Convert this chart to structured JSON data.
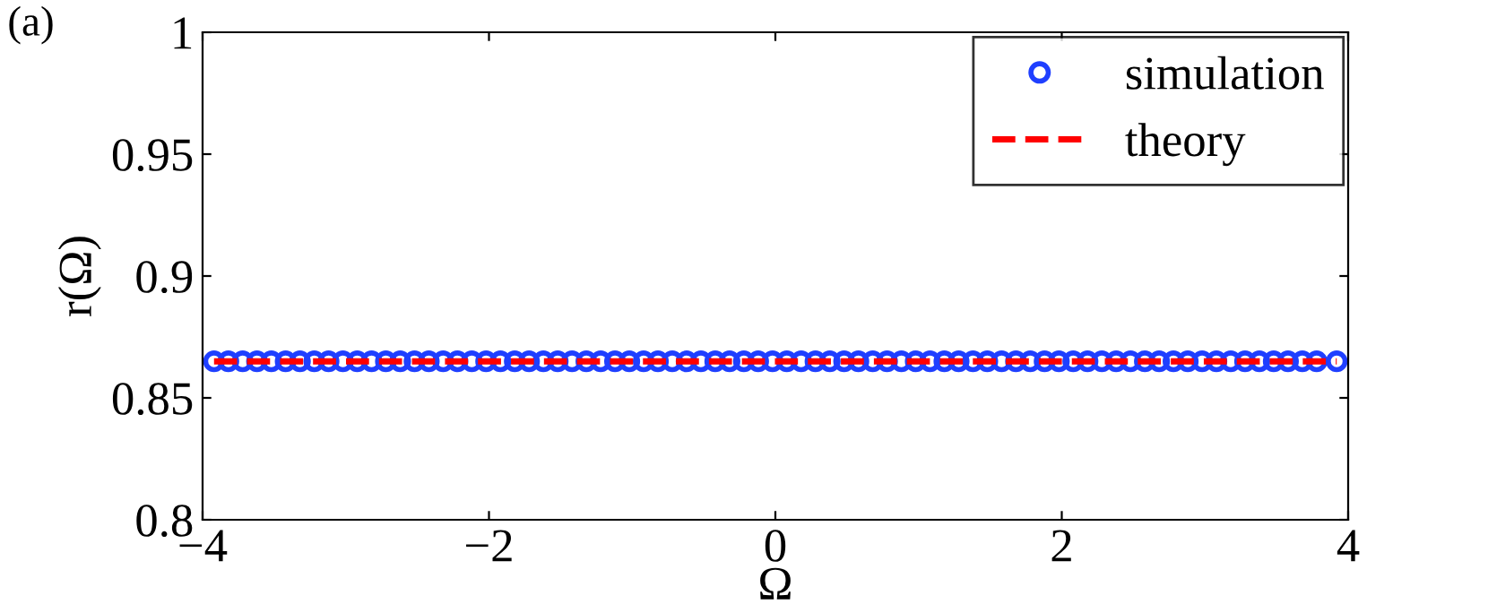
{
  "chart_data": {
    "type": "scatter",
    "xlabel": "Ω",
    "ylabel": "r(Ω)",
    "annotations": [
      "(a)"
    ],
    "xlim": [
      -4,
      4
    ],
    "xticks": [
      {
        "value": -4,
        "label": "−4"
      },
      {
        "value": -2,
        "label": "−2"
      },
      0,
      2,
      4
    ],
    "ylim": [
      0.8,
      1
    ],
    "yticks": [
      0.8,
      0.85,
      0.9,
      0.95,
      1
    ],
    "grid": false,
    "legend": "top right",
    "series": [
      {
        "name": "simulation",
        "marker": "circle",
        "color": "#1f3fff",
        "x": [
          -3.92,
          -3.82,
          -3.72,
          -3.62,
          -3.52,
          -3.42,
          -3.32,
          -3.22,
          -3.12,
          -3.02,
          -2.92,
          -2.82,
          -2.72,
          -2.62,
          -2.52,
          -2.42,
          -2.32,
          -2.22,
          -2.12,
          -2.02,
          -1.92,
          -1.82,
          -1.72,
          -1.62,
          -1.52,
          -1.42,
          -1.32,
          -1.22,
          -1.12,
          -1.02,
          -0.92,
          -0.82,
          -0.72,
          -0.62,
          -0.52,
          -0.42,
          -0.32,
          -0.22,
          -0.12,
          -0.02,
          0.08,
          0.18,
          0.28,
          0.38,
          0.48,
          0.58,
          0.68,
          0.78,
          0.88,
          0.98,
          1.08,
          1.18,
          1.28,
          1.38,
          1.48,
          1.58,
          1.68,
          1.78,
          1.88,
          1.98,
          2.08,
          2.18,
          2.28,
          2.38,
          2.48,
          2.58,
          2.68,
          2.78,
          2.88,
          2.98,
          3.08,
          3.18,
          3.28,
          3.38,
          3.48,
          3.58,
          3.68,
          3.78,
          3.92
        ],
        "values": [
          0.865,
          0.865,
          0.865,
          0.865,
          0.865,
          0.865,
          0.865,
          0.865,
          0.865,
          0.865,
          0.865,
          0.865,
          0.865,
          0.865,
          0.865,
          0.865,
          0.865,
          0.865,
          0.865,
          0.865,
          0.865,
          0.865,
          0.865,
          0.865,
          0.865,
          0.865,
          0.865,
          0.865,
          0.865,
          0.865,
          0.865,
          0.865,
          0.865,
          0.865,
          0.865,
          0.865,
          0.865,
          0.865,
          0.865,
          0.865,
          0.865,
          0.865,
          0.865,
          0.865,
          0.865,
          0.865,
          0.865,
          0.865,
          0.865,
          0.865,
          0.865,
          0.865,
          0.865,
          0.865,
          0.865,
          0.865,
          0.865,
          0.865,
          0.865,
          0.865,
          0.865,
          0.865,
          0.865,
          0.865,
          0.865,
          0.865,
          0.865,
          0.865,
          0.865,
          0.865,
          0.865,
          0.865,
          0.865,
          0.865,
          0.865,
          0.865,
          0.865,
          0.865,
          0.865
        ]
      },
      {
        "name": "theory",
        "type": "line",
        "line_style": "dashed",
        "marker": "none",
        "color": "#ff0000",
        "x": [
          -3.92,
          3.92
        ],
        "values": [
          0.865,
          0.865
        ]
      }
    ]
  }
}
